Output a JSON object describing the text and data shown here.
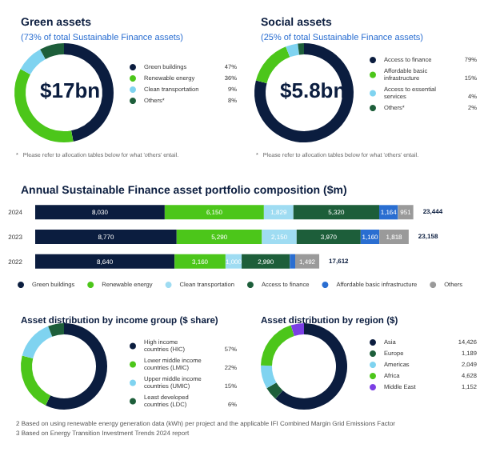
{
  "chart_data": [
    {
      "type": "donut",
      "title": "Green assets",
      "subtitle": "(73% of total Sustainable Finance assets)",
      "annotations": [
        "$17bn",
        "*   Please refer to allocation tables below for what 'others' entail."
      ],
      "categories": [
        "Green buildings",
        "Renewable energy",
        "Clean transportation",
        "Others*"
      ],
      "values": [
        47,
        36,
        9,
        8
      ],
      "value_labels": [
        "47%",
        "36%",
        "9%",
        "8%"
      ],
      "colors": [
        "#0b1d3f",
        "#4cc61a",
        "#7fd3f0",
        "#1d5e3a"
      ],
      "legend": "right"
    },
    {
      "type": "donut",
      "title": "Social assets",
      "subtitle": "(25% of total Sustainable Finance assets)",
      "annotations": [
        "$5.8bn",
        "*   Please refer to allocation tables below for what 'others' entail."
      ],
      "categories": [
        "Access to finance",
        "Affordable basic infrastructure",
        "Access to essential services",
        "Others*"
      ],
      "values": [
        79,
        15,
        4,
        2
      ],
      "value_labels": [
        "79%",
        "15%",
        "4%",
        "2%"
      ],
      "colors": [
        "#0b1d3f",
        "#4cc61a",
        "#7fd3f0",
        "#1d5e3a"
      ],
      "legend": "right"
    },
    {
      "type": "bar",
      "orientation": "horizontal",
      "stacked": true,
      "title": "Annual Sustainable Finance asset portfolio composition ($m)",
      "categories": [
        "2024",
        "2023",
        "2022"
      ],
      "series": [
        {
          "name": "Green buildings",
          "color": "#0b1d3f",
          "values": [
            8030,
            8770,
            8640
          ],
          "value_labels": [
            "8,030",
            "8,770",
            "8,640"
          ]
        },
        {
          "name": "Renewable energy",
          "color": "#4cc61a",
          "values": [
            6150,
            5290,
            3160
          ],
          "value_labels": [
            "6,150",
            "5,290",
            "3,160"
          ]
        },
        {
          "name": "Clean transportation",
          "color": "#9fdcf2",
          "values": [
            1829,
            2150,
            1000
          ],
          "value_labels": [
            "1,829",
            "2,150",
            "1,000"
          ]
        },
        {
          "name": "Access to finance",
          "color": "#1d5e3a",
          "values": [
            5320,
            3970,
            2990
          ],
          "value_labels": [
            "5,320",
            "3,970",
            "2,990"
          ]
        },
        {
          "name": "Affordable basic infrastructure",
          "color": "#2a6ed1",
          "values": [
            1164,
            1160,
            330
          ],
          "value_labels": [
            "1,164",
            "1,160",
            null
          ]
        },
        {
          "name": "Others",
          "color": "#9a9a9a",
          "values": [
            951,
            1818,
            1492
          ],
          "value_labels": [
            "951",
            "1,818",
            "1,492"
          ]
        }
      ],
      "totals": [
        "23,444",
        "23,158",
        "17,612"
      ],
      "legend": "bottom",
      "tick_labels": "y"
    },
    {
      "type": "donut",
      "title": "Asset distribution by income group ($ share)",
      "categories": [
        "High income countries (HIC)",
        "Lower middle income countries (LMIC)",
        "Upper middle income countries (UMIC)",
        "Least developed countries (LDC)"
      ],
      "values": [
        57,
        22,
        15,
        6
      ],
      "value_labels": [
        "57%",
        "22%",
        "15%",
        "6%"
      ],
      "colors": [
        "#0b1d3f",
        "#4cc61a",
        "#7fd3f0",
        "#1d5e3a"
      ],
      "legend": "right",
      "annotations": [
        "2   Based on using renewable energy generation data (kWh) per project and the applicable IFI Combined Margin Grid Emissions Factor",
        "3   Based on Energy Transition Investment Trends 2024 report"
      ]
    },
    {
      "type": "donut",
      "title": "Asset distribution by region ($)",
      "categories": [
        "Asia",
        "Europe",
        "Americas",
        "Africa",
        "Middle East"
      ],
      "values": [
        14426,
        1189,
        2049,
        4628,
        1152
      ],
      "value_labels": [
        "14,426",
        "1,189",
        "2,049",
        "4,628",
        "1,152"
      ],
      "colors": [
        "#0b1d3f",
        "#1d5e3a",
        "#7fd3f0",
        "#4cc61a",
        "#7b3fe4"
      ],
      "legend": "right"
    }
  ]
}
